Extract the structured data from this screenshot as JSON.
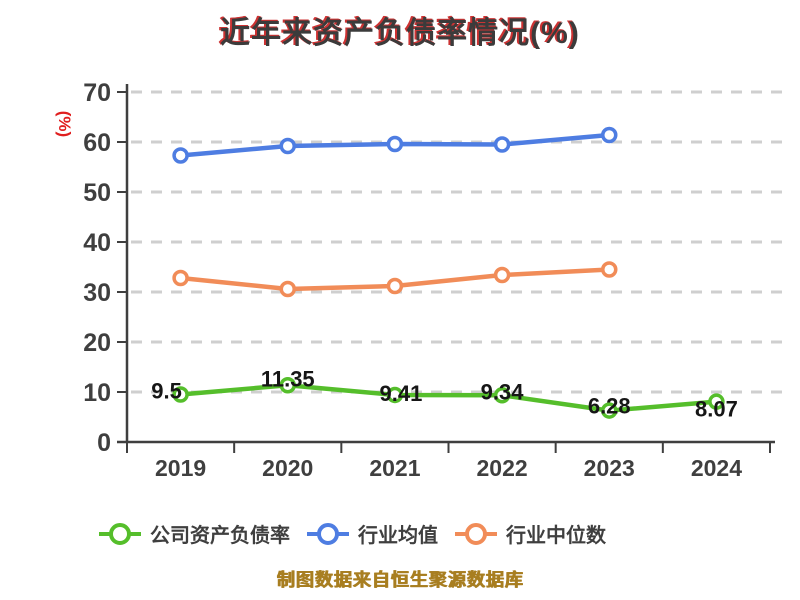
{
  "title": "近年来资产负债率情况(%)",
  "caption": "制图数据来自恒生聚源数据库",
  "colors": {
    "title_text": "#3b3b3b",
    "title_shadow": "#cc3333",
    "axis": "#3f3f3f",
    "grid": "#cfcfcf",
    "ylabel_text": "#e01f1f",
    "data_label": "#161616",
    "caption_text": "#a87e20",
    "marker_fill": "#ffffff"
  },
  "legend": [
    {
      "label": "公司资产负债率",
      "series": "company"
    },
    {
      "label": "行业均值",
      "series": "industry_avg"
    },
    {
      "label": "行业中位数",
      "series": "industry_median"
    }
  ],
  "chart_data": {
    "type": "line",
    "title": "近年来资产负债率情况(%)",
    "ylabel": "(%)",
    "categories": [
      "2019",
      "2020",
      "2021",
      "2022",
      "2023",
      "2024"
    ],
    "ylim": [
      0,
      70
    ],
    "yticks": [
      0,
      10,
      20,
      30,
      40,
      50,
      60,
      70
    ],
    "grid": "dashed-horizontal",
    "legend_position": "bottom",
    "series": [
      {
        "name": "公司资产负债率",
        "color": "#55be2b",
        "values": [
          9.5,
          11.35,
          9.41,
          9.34,
          6.28,
          8.07
        ],
        "point_labels": [
          "9.5",
          "11.35",
          "9.41",
          "9.34",
          "6.28",
          "8.07"
        ]
      },
      {
        "name": "行业均值",
        "color": "#4e7de2",
        "values": [
          57.3,
          59.2,
          59.6,
          59.5,
          61.4,
          null
        ]
      },
      {
        "name": "行业中位数",
        "color": "#f18c58",
        "values": [
          32.8,
          30.6,
          31.2,
          33.4,
          34.5,
          null
        ]
      }
    ]
  }
}
